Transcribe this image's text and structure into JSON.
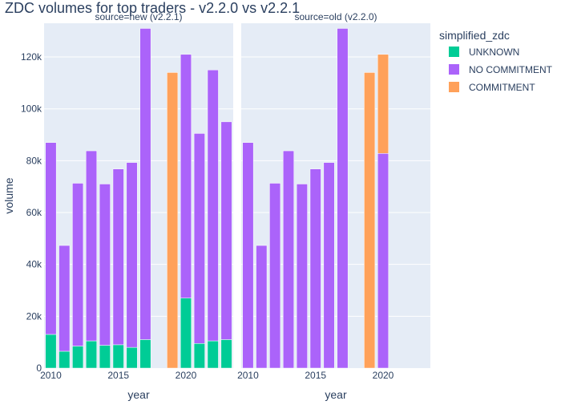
{
  "chart_data": {
    "type": "bar",
    "barmode": "stack",
    "title": "ZDC volumes for top traders - v2.2.0 vs v2.2.1",
    "ylabel": "volume",
    "xlabel": "year",
    "ylim": [
      0,
      133000
    ],
    "xlim": [
      2009.5,
      2023.5
    ],
    "grid": true,
    "legend": {
      "title": "simplified_zdc",
      "position": "right",
      "entries": [
        {
          "name": "UNKNOWN",
          "color": "#00cc96"
        },
        {
          "name": "NO COMMITMENT",
          "color": "#ab63fa"
        },
        {
          "name": "COMMITMENT",
          "color": "#ffa15a"
        }
      ]
    },
    "y_ticks": [
      {
        "value": 0,
        "label": "0"
      },
      {
        "value": 20000,
        "label": "20k"
      },
      {
        "value": 40000,
        "label": "40k"
      },
      {
        "value": 60000,
        "label": "60k"
      },
      {
        "value": 80000,
        "label": "80k"
      },
      {
        "value": 100000,
        "label": "100k"
      },
      {
        "value": 120000,
        "label": "120k"
      }
    ],
    "x_ticks": [
      {
        "value": 2010,
        "label": "2010"
      },
      {
        "value": 2015,
        "label": "2015"
      },
      {
        "value": 2020,
        "label": "2020"
      }
    ],
    "facets": [
      {
        "title": "source=new (v2.2.1)",
        "x": [
          2010,
          2011,
          2012,
          2013,
          2014,
          2015,
          2016,
          2017,
          2019,
          2020,
          2021,
          2022,
          2023
        ],
        "series": [
          {
            "name": "UNKNOWN",
            "color": "#00cc96",
            "values": [
              13000,
              6500,
              8500,
              10500,
              8800,
              9000,
              8000,
              11000,
              0,
              27000,
              9500,
              10500,
              11000
            ]
          },
          {
            "name": "NO COMMITMENT",
            "color": "#ab63fa",
            "values": [
              74000,
              40800,
              62800,
              73300,
              62200,
              67800,
              71300,
              120000,
              0,
              94000,
              81000,
              104500,
              84000
            ]
          },
          {
            "name": "COMMITMENT",
            "color": "#ffa15a",
            "values": [
              0,
              0,
              0,
              0,
              0,
              0,
              0,
              0,
              114000,
              0,
              0,
              0,
              0
            ]
          }
        ]
      },
      {
        "title": "source=old (v2.2.0)",
        "x": [
          2010,
          2011,
          2012,
          2013,
          2014,
          2015,
          2016,
          2017,
          2019,
          2020
        ],
        "series": [
          {
            "name": "UNKNOWN",
            "color": "#00cc96",
            "values": [
              0,
              0,
              0,
              0,
              0,
              0,
              0,
              0,
              0,
              0
            ]
          },
          {
            "name": "NO COMMITMENT",
            "color": "#ab63fa",
            "values": [
              87000,
              47300,
              71300,
              83800,
              71000,
              76800,
              79300,
              131000,
              0,
              82800
            ]
          },
          {
            "name": "COMMITMENT",
            "color": "#ffa15a",
            "values": [
              0,
              0,
              0,
              0,
              0,
              0,
              0,
              0,
              114000,
              38200
            ]
          }
        ]
      }
    ]
  }
}
